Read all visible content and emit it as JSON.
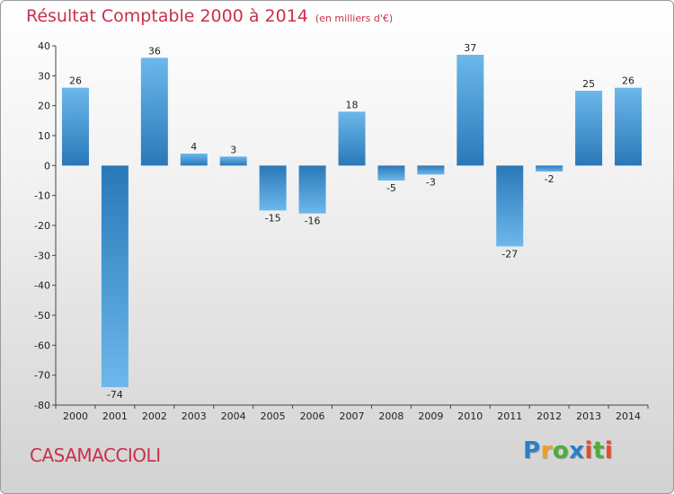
{
  "chart_data": {
    "type": "bar",
    "title": "Résultat Comptable 2000 à 2014",
    "subtitle": "(en milliers d'€)",
    "categories": [
      "2000",
      "2001",
      "2002",
      "2003",
      "2004",
      "2005",
      "2006",
      "2007",
      "2008",
      "2009",
      "2010",
      "2011",
      "2012",
      "2013",
      "2014"
    ],
    "values": [
      26,
      -74,
      36,
      4,
      3,
      -15,
      -16,
      18,
      -5,
      -3,
      37,
      -27,
      -2,
      25,
      26
    ],
    "labels": [
      "26",
      "-74",
      "36",
      "4",
      "3",
      "-15",
      "-16",
      "18",
      "-5",
      "-3",
      "37",
      "-27",
      "-2",
      "25",
      "26"
    ],
    "ylim": [
      -80,
      40
    ],
    "yticks": [
      40,
      30,
      20,
      10,
      0,
      -10,
      -20,
      -30,
      -40,
      -50,
      -60,
      -70,
      -80
    ],
    "xlabel": "",
    "ylabel": "",
    "grid": false
  },
  "location": "CASAMACCIOLI",
  "brand": {
    "letters": [
      "P",
      "r",
      "o",
      "x",
      "i",
      "t",
      "i"
    ],
    "colors": [
      "#2a7fc8",
      "#f0a020",
      "#4caf3a",
      "#2a7fc8",
      "#e94a2a",
      "#4caf3a",
      "#e94a2a"
    ]
  },
  "colors": {
    "bar_dark": "#2a78b8",
    "bar_light": "#6cb8ec",
    "title": "#c9304a"
  }
}
